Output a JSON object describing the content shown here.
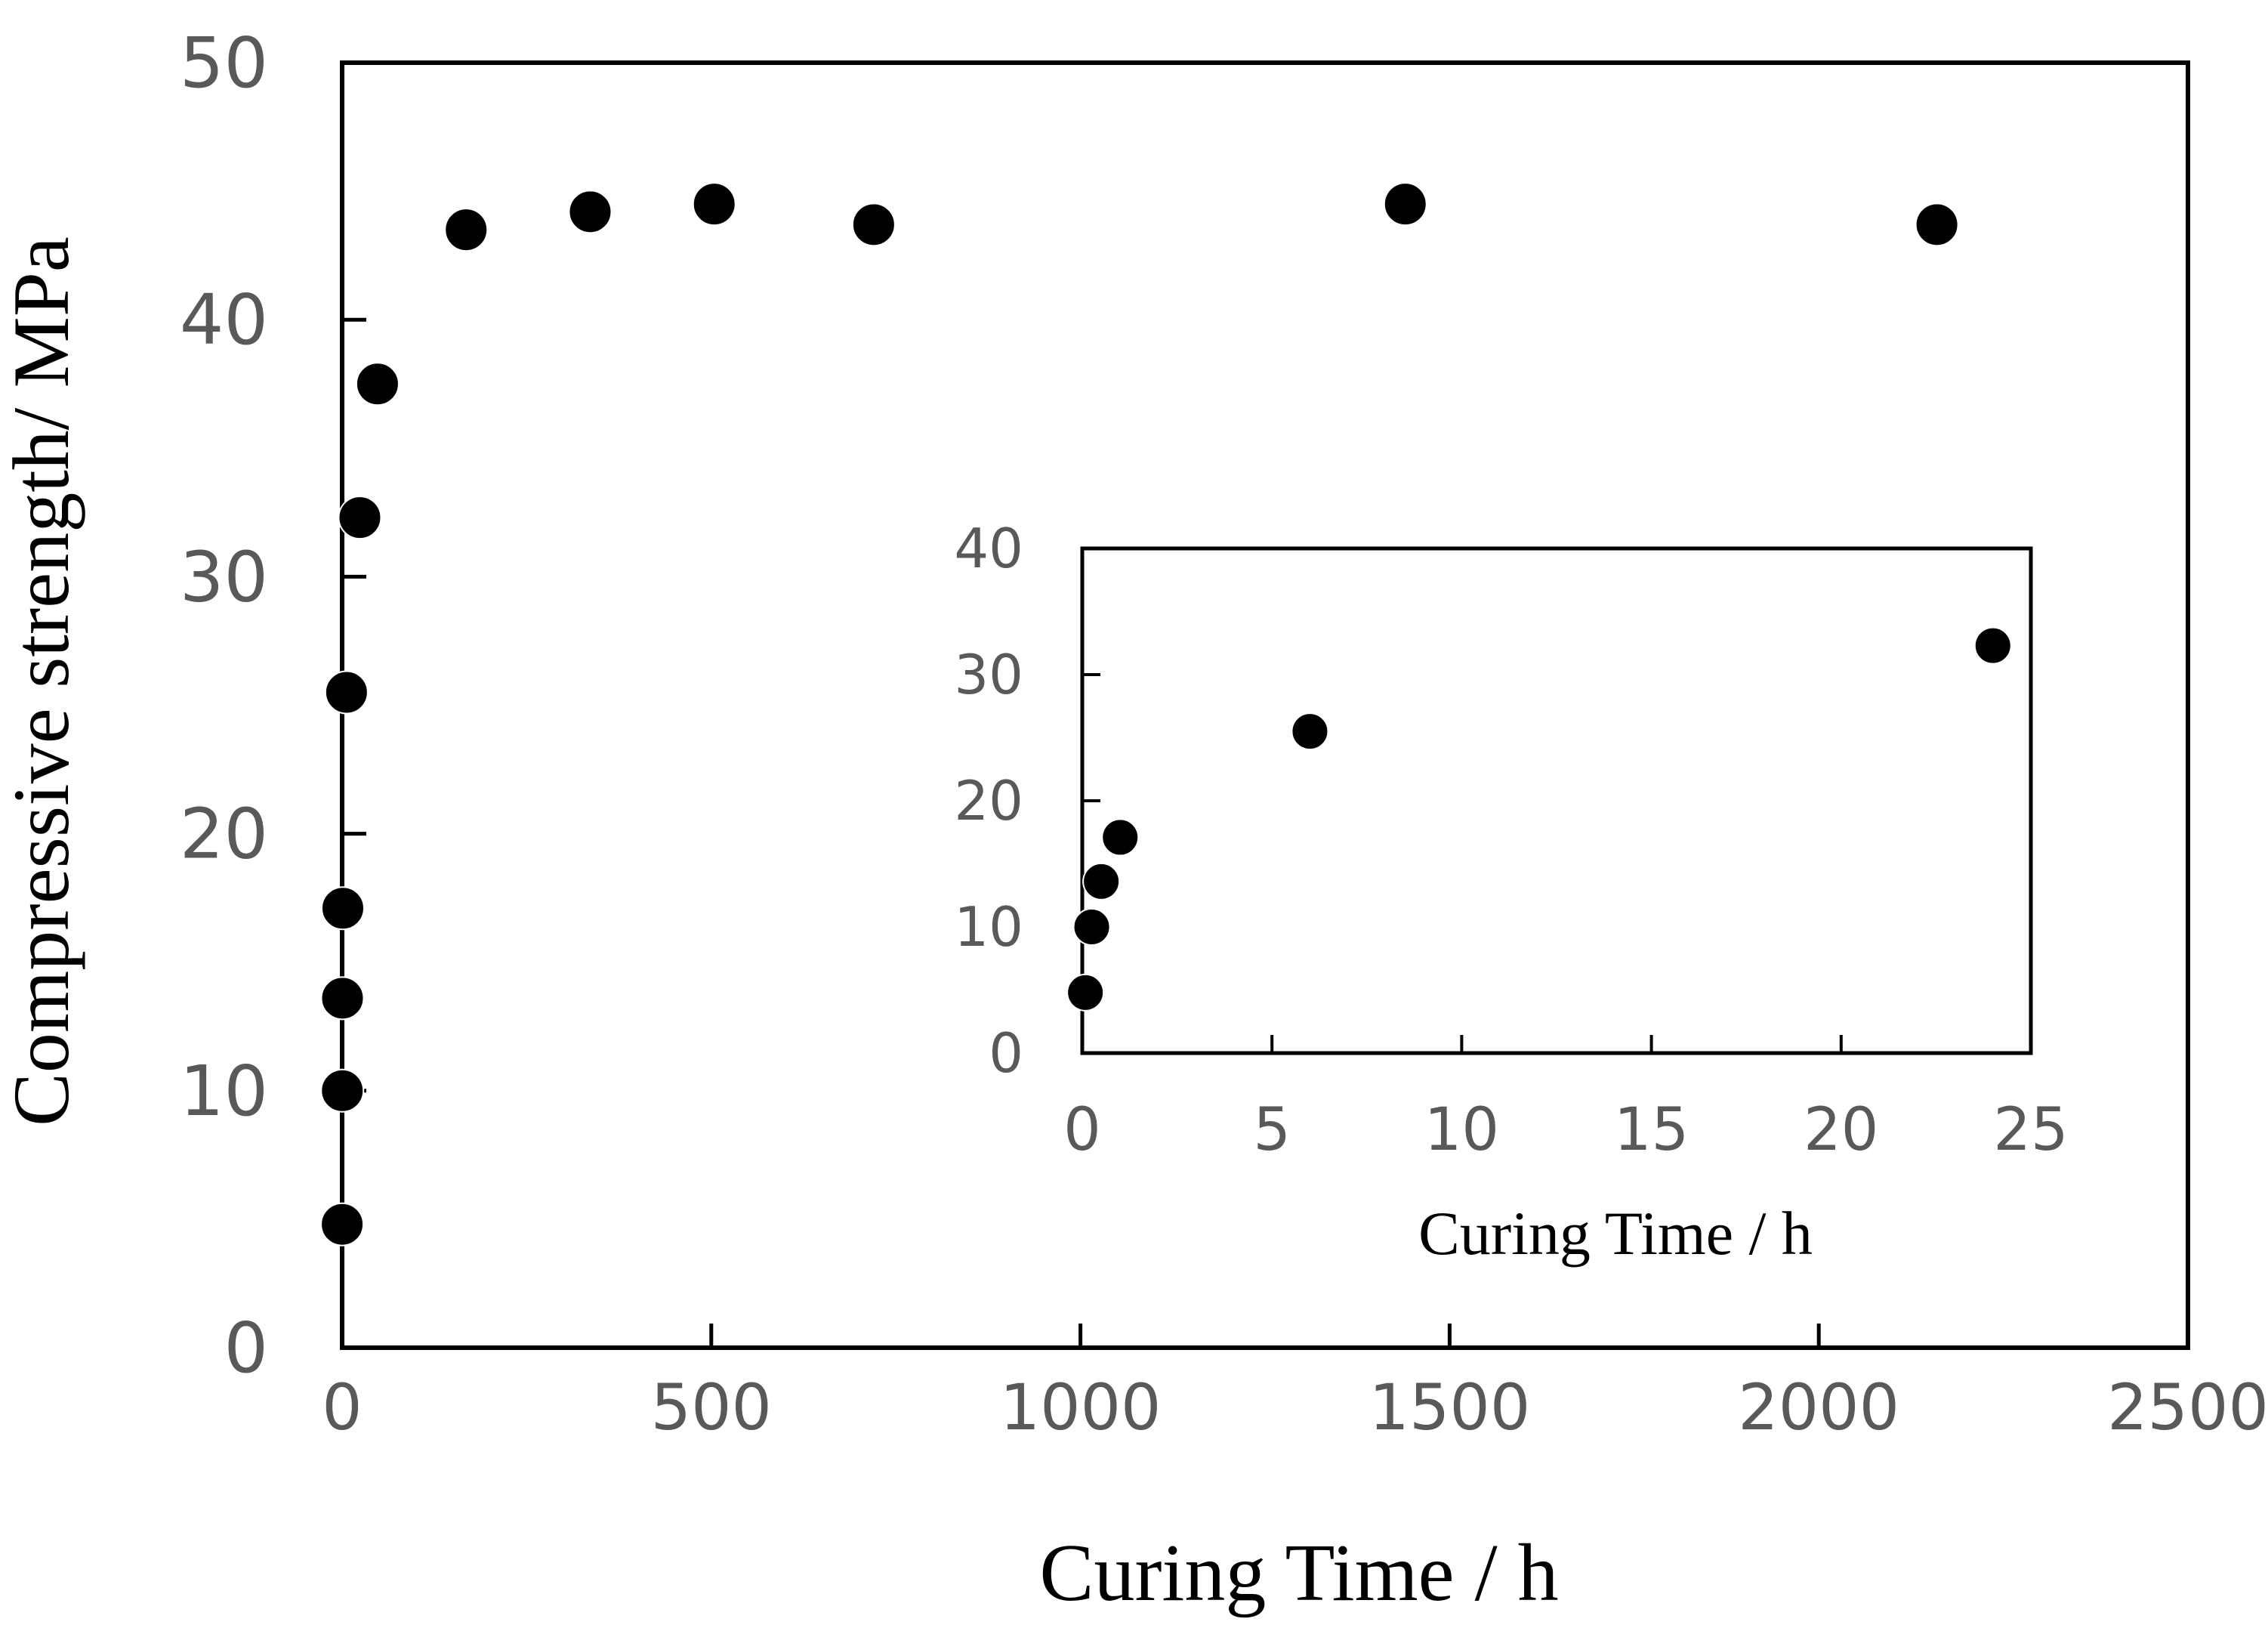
{
  "chart_data": [
    {
      "id": "main",
      "type": "scatter",
      "title": "",
      "xlabel": "Curing Time / h",
      "ylabel": "Compressive strength/ MPa",
      "xlim": [
        0,
        2500
      ],
      "ylim": [
        0,
        50
      ],
      "xticks": [
        0,
        500,
        1000,
        1500,
        2000,
        2500
      ],
      "yticks": [
        0,
        10,
        20,
        30,
        40,
        50
      ],
      "xtick_labels": [
        "0",
        "500",
        "1000",
        "1500",
        "2000",
        "2500"
      ],
      "ytick_labels": [
        "0",
        "10",
        "20",
        "30",
        "40",
        "50"
      ],
      "grid": false,
      "legend": "none",
      "series": [
        {
          "name": "Compressive strength",
          "x": [
            0.083,
            0.25,
            0.5,
            1,
            6,
            24,
            48,
            168,
            336,
            504,
            720,
            1440,
            2160
          ],
          "y": [
            4.8,
            10.0,
            13.6,
            17.1,
            25.5,
            32.3,
            37.5,
            43.5,
            44.2,
            44.5,
            43.7,
            44.5,
            43.7
          ]
        }
      ]
    },
    {
      "id": "inset",
      "type": "scatter",
      "title": "",
      "xlabel": "Curing Time / h",
      "ylabel": "",
      "xlim": [
        0,
        25
      ],
      "ylim": [
        0,
        40
      ],
      "xticks": [
        0,
        5,
        10,
        15,
        20,
        25
      ],
      "yticks": [
        0,
        10,
        20,
        30,
        40
      ],
      "xtick_labels": [
        "0",
        "5",
        "10",
        "15",
        "20",
        "25"
      ],
      "ytick_labels": [
        "0",
        "10",
        "20",
        "30",
        "40"
      ],
      "grid": false,
      "legend": "none",
      "series": [
        {
          "name": "Compressive strength",
          "x": [
            0.083,
            0.25,
            0.5,
            1,
            6,
            24
          ],
          "y": [
            4.8,
            10.0,
            13.6,
            17.1,
            25.5,
            32.3
          ]
        }
      ]
    }
  ],
  "colors": {
    "marker": "#000000",
    "axis": "#000000",
    "tick_text": "#595959",
    "title_text": "#000000"
  }
}
